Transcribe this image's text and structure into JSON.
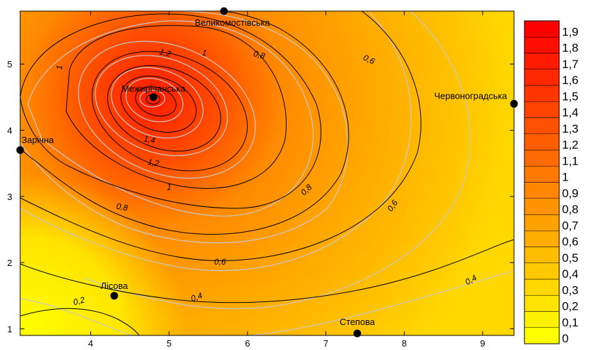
{
  "chart_data": {
    "type": "heatmap",
    "title": "",
    "xlabel": "",
    "ylabel": "",
    "xlim": [
      3.1,
      9.4
    ],
    "ylim": [
      0.9,
      5.8
    ],
    "x_ticks": [
      "4",
      "5",
      "6",
      "7",
      "8",
      "9"
    ],
    "y_ticks": [
      "1",
      "2",
      "3",
      "4",
      "5"
    ],
    "colorbar": {
      "levels": [
        "0",
        "0,1",
        "0,2",
        "0,3",
        "0,4",
        "0,5",
        "0,6",
        "0,7",
        "0,8",
        "0,9",
        "1",
        "1,1",
        "1,2",
        "1,3",
        "1,4",
        "1,5",
        "1,6",
        "1,7",
        "1,8",
        "1,9"
      ],
      "color_low": "#ffff00",
      "color_high": "#ff0000",
      "min": 0,
      "max": 2.0
    },
    "contour_labels": [
      {
        "text": "1,2",
        "value": 1.2,
        "x": 4.95,
        "y": 5.17,
        "angle": 15
      },
      {
        "text": "1",
        "value": 1.0,
        "x": 5.45,
        "y": 5.17,
        "angle": 10
      },
      {
        "text": "0,8",
        "value": 0.8,
        "x": 6.15,
        "y": 5.14,
        "angle": 15
      },
      {
        "text": "0,6",
        "value": 0.6,
        "x": 7.55,
        "y": 5.07,
        "angle": 25
      },
      {
        "text": "1",
        "value": 1.0,
        "x": 3.6,
        "y": 4.95,
        "angle": -85
      },
      {
        "text": "1,4",
        "value": 1.4,
        "x": 4.75,
        "y": 3.86,
        "angle": 10
      },
      {
        "text": "1,2",
        "value": 1.2,
        "x": 4.8,
        "y": 3.51,
        "angle": 10
      },
      {
        "text": "1",
        "value": 1.0,
        "x": 5.0,
        "y": 3.14,
        "angle": 0
      },
      {
        "text": "0,8",
        "value": 0.8,
        "x": 4.4,
        "y": 2.84,
        "angle": 10
      },
      {
        "text": "0,8",
        "value": 0.8,
        "x": 6.75,
        "y": 3.1,
        "angle": -45
      },
      {
        "text": "0,6",
        "value": 0.6,
        "x": 7.85,
        "y": 2.86,
        "angle": -55
      },
      {
        "text": "0,6",
        "value": 0.6,
        "x": 5.65,
        "y": 2.01,
        "angle": 0
      },
      {
        "text": "0,4",
        "value": 0.4,
        "x": 5.35,
        "y": 1.48,
        "angle": -20
      },
      {
        "text": "0,4",
        "value": 0.4,
        "x": 8.85,
        "y": 1.74,
        "angle": -30
      },
      {
        "text": "0,2",
        "value": 0.2,
        "x": 3.85,
        "y": 1.42,
        "angle": -15
      }
    ],
    "stations": [
      {
        "name": "Великомостівська",
        "x": 5.7,
        "y": 5.8
      },
      {
        "name": "Межирічанська",
        "x": 4.8,
        "y": 4.5
      },
      {
        "name": "Червоноградська",
        "x": 9.4,
        "y": 4.4
      },
      {
        "name": "Зарічна",
        "x": 3.1,
        "y": 3.7
      },
      {
        "name": "Лісова",
        "x": 4.3,
        "y": 1.5
      },
      {
        "name": "Степова",
        "x": 7.4,
        "y": 0.93
      }
    ]
  }
}
